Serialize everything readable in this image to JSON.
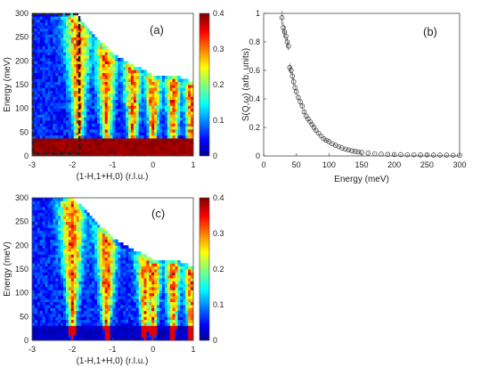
{
  "chart_data": [
    {
      "panel": "a",
      "type": "heatmap",
      "label": "(a)",
      "xlabel": "(1-H,1+H,0) (r.l.u.)",
      "ylabel": "Energy (meV)",
      "xlim": [
        -3,
        1
      ],
      "ylim": [
        0,
        300
      ],
      "xticks": [
        "-3",
        "-2",
        "-1",
        "0",
        "1"
      ],
      "yticks": [
        "0",
        "50",
        "100",
        "150",
        "200",
        "250",
        "300"
      ],
      "colorbar": {
        "range": [
          0,
          0.4
        ],
        "ticks": [
          "0",
          "0.1",
          "0.2",
          "0.3",
          "0.4"
        ]
      },
      "highlight_box": {
        "x": [
          -3,
          -1.85
        ],
        "y": [
          5,
          300
        ]
      },
      "mode_centers": [
        -1.85,
        -1.15,
        -0.5,
        0.0,
        0.5,
        0.95
      ],
      "upper_edge": [
        [
          -3,
          300
        ],
        [
          -2,
          300
        ],
        [
          -1.8,
          285
        ],
        [
          -1,
          215
        ],
        [
          0,
          170
        ],
        [
          0.5,
          170
        ],
        [
          1,
          155
        ]
      ],
      "background_boundary": 40
    },
    {
      "panel": "b",
      "type": "scatter",
      "label": "(b)",
      "xlabel": "Energy (meV)",
      "ylabel": "S(Q,ω) (arb. units)",
      "xlim": [
        0,
        300
      ],
      "ylim": [
        0,
        1
      ],
      "xticks": [
        "0",
        "50",
        "100",
        "150",
        "200",
        "250",
        "300"
      ],
      "yticks": [
        "0",
        "0.2",
        "0.4",
        "0.6",
        "0.8",
        "1"
      ],
      "x": [
        28,
        30,
        32,
        34,
        36,
        38,
        40,
        42,
        44,
        46,
        48,
        50,
        53,
        56,
        59,
        62,
        65,
        68,
        71,
        74,
        77,
        80,
        84,
        88,
        92,
        96,
        100,
        105,
        110,
        115,
        120,
        125,
        130,
        135,
        140,
        145,
        150,
        160,
        170,
        180,
        190,
        200,
        210,
        220,
        230,
        240,
        250,
        260,
        270,
        280,
        290,
        300
      ],
      "y": [
        0.97,
        0.9,
        0.87,
        0.84,
        0.8,
        0.77,
        0.62,
        0.6,
        0.56,
        0.52,
        0.48,
        0.45,
        0.41,
        0.38,
        0.35,
        0.31,
        0.28,
        0.26,
        0.24,
        0.22,
        0.2,
        0.18,
        0.16,
        0.14,
        0.12,
        0.11,
        0.1,
        0.085,
        0.075,
        0.065,
        0.056,
        0.048,
        0.042,
        0.036,
        0.032,
        0.028,
        0.025,
        0.02,
        0.016,
        0.013,
        0.011,
        0.01,
        0.009,
        0.008,
        0.008,
        0.007,
        0.007,
        0.006,
        0.006,
        0.006,
        0.005,
        0.005
      ],
      "err": [
        0.05,
        0.04,
        0.04,
        0.035,
        0.035,
        0.03,
        0.03,
        0.03,
        0.025,
        0.025,
        0.02,
        0.02,
        0.02,
        0.02,
        0.018,
        0.016,
        0.015,
        0.014,
        0.013,
        0.012,
        0.011,
        0.01,
        0.01,
        0.01,
        0.009,
        0.009,
        0.008,
        0.008,
        0.007,
        0.007,
        0.006,
        0.006,
        0.006,
        0.005,
        0.005,
        0.005,
        0.005,
        0.004,
        0.004,
        0.004,
        0.004,
        0.004,
        0.003,
        0.003,
        0.003,
        0.003,
        0.003,
        0.003,
        0.003,
        0.003,
        0.003,
        0.003
      ]
    },
    {
      "panel": "c",
      "type": "heatmap",
      "label": "(c)",
      "xlabel": "(1-H,1+H,0) (r.l.u.)",
      "ylabel": "Energy (meV)",
      "xlim": [
        -3,
        1
      ],
      "ylim": [
        0,
        300
      ],
      "xticks": [
        "-3",
        "-2",
        "-1",
        "0",
        "1"
      ],
      "yticks": [
        "0",
        "50",
        "100",
        "150",
        "200",
        "250",
        "300"
      ],
      "colorbar": {
        "range": [
          0,
          0.4
        ],
        "ticks": [
          "0",
          "0.1",
          "0.2",
          "0.3",
          "0.4"
        ]
      },
      "mode_centers": [
        -2.0,
        -1.15,
        -0.2,
        0.0,
        0.5,
        0.95
      ],
      "upper_edge": [
        [
          -3,
          300
        ],
        [
          -2,
          300
        ],
        [
          -1.8,
          285
        ],
        [
          -1,
          215
        ],
        [
          0,
          170
        ],
        [
          0.5,
          170
        ],
        [
          1,
          155
        ]
      ],
      "background_boundary": 30
    }
  ]
}
